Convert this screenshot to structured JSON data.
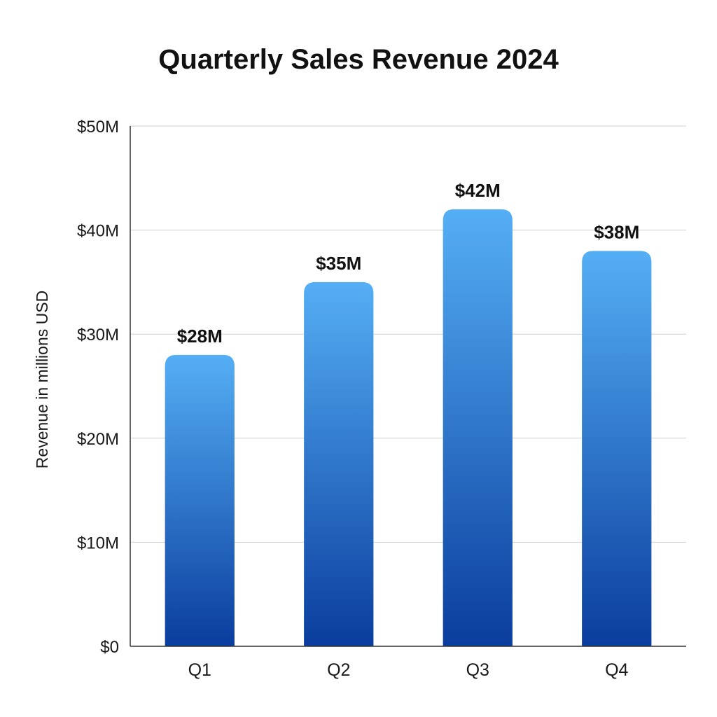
{
  "chart_data": {
    "type": "bar",
    "title": "Quarterly Sales Revenue 2024",
    "xlabel": "",
    "ylabel": "Revenue in millions USD",
    "categories": [
      "Q1",
      "Q2",
      "Q3",
      "Q4"
    ],
    "values": [
      28,
      35,
      42,
      38
    ],
    "data_labels": [
      "$28M",
      "$35M",
      "$42M",
      "$38M"
    ],
    "ylim": [
      0,
      50
    ],
    "y_ticks": [
      0,
      10,
      20,
      30,
      40,
      50
    ],
    "y_tick_labels": [
      "$0",
      "$10M",
      "$20M",
      "$30M",
      "$40M",
      "$50M"
    ],
    "grid": true,
    "legend": "none",
    "bar_color_top": "#55aff5",
    "bar_color_bottom": "#0a3d9e"
  }
}
